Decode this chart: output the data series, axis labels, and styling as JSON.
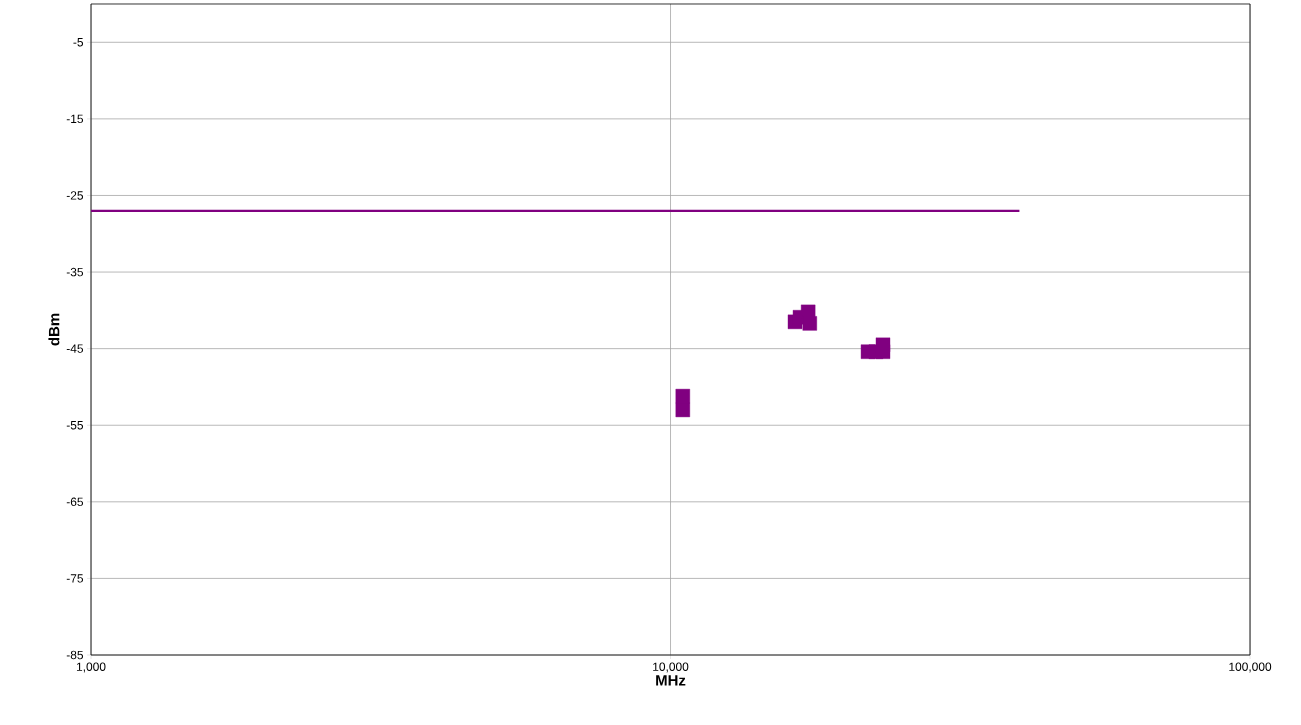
{
  "chart_data": {
    "type": "scatter",
    "xlabel": "MHz",
    "ylabel": "dBm",
    "log": "x",
    "grid": true,
    "xlim": [
      1000,
      100000
    ],
    "ylim": [
      -85,
      0
    ],
    "xticks": [
      {
        "value": 1000,
        "label": "1,000"
      },
      {
        "value": 10000,
        "label": "10,000"
      },
      {
        "value": 100000,
        "label": "100,000"
      }
    ],
    "yticks": [
      -85,
      -75,
      -65,
      -55,
      -45,
      -35,
      -25,
      -15,
      -5
    ],
    "series": [
      {
        "type": "line",
        "color": "#800080",
        "marker": "none",
        "x": [
          1000,
          40000
        ],
        "values": [
          -27,
          -27
        ]
      },
      {
        "color": "#800080",
        "marker": "square",
        "x": [
          10500,
          10500,
          16400,
          16730,
          17280,
          17390,
          21920,
          22620,
          23260,
          23260
        ],
        "values": [
          -51.2,
          -53.0,
          -41.5,
          -40.9,
          -40.2,
          -41.7,
          -45.4,
          -45.4,
          -44.5,
          -45.4
        ]
      }
    ]
  }
}
